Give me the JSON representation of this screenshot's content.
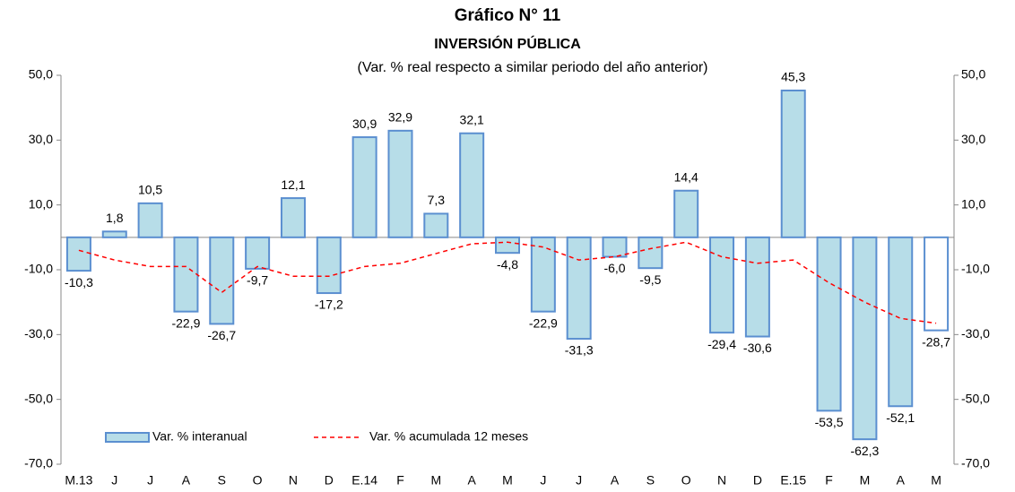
{
  "chart_data": {
    "type": "bar_line",
    "title": "Gráfico N° 11",
    "subtitle": "INVERSIÓN PÚBLICA",
    "note": "(Var. % real respecto a similar periodo del año anterior)",
    "categories": [
      "M.13",
      "J",
      "J",
      "A",
      "S",
      "O",
      "N",
      "D",
      "E.14",
      "F",
      "M",
      "A",
      "M",
      "J",
      "J",
      "A",
      "S",
      "O",
      "N",
      "D",
      "E.15",
      "F",
      "M",
      "A",
      "M"
    ],
    "series": [
      {
        "name": "Var. % interanual",
        "type": "bar",
        "color": "#b7dde8",
        "edge_color": "#5b8fd0",
        "point_colors": [
          "#b7dde8",
          "#b7dde8",
          "#b7dde8",
          "#b7dde8",
          "#b7dde8",
          "#b7dde8",
          "#b7dde8",
          "#b7dde8",
          "#b7dde8",
          "#b7dde8",
          "#b7dde8",
          "#b7dde8",
          "#b7dde8",
          "#b7dde8",
          "#b7dde8",
          "#b7dde8",
          "#b7dde8",
          "#b7dde8",
          "#b7dde8",
          "#b7dde8",
          "#b7dde8",
          "#b7dde8",
          "#b7dde8",
          "#b7dde8",
          "#ffffff"
        ],
        "values": [
          -10.3,
          1.8,
          10.5,
          -22.9,
          -26.7,
          -9.7,
          12.1,
          -17.2,
          30.9,
          32.9,
          7.3,
          32.1,
          -4.8,
          -22.9,
          -31.3,
          -6.0,
          -9.5,
          14.4,
          -29.4,
          -30.6,
          45.3,
          -53.5,
          -62.3,
          -52.1,
          -28.7
        ],
        "value_labels": [
          "-10,3",
          "1,8",
          "10,5",
          "-22,9",
          "-26,7",
          "-9,7",
          "12,1",
          "-17,2",
          "30,9",
          "32,9",
          "7,3",
          "32,1",
          "-4,8",
          "-22,9",
          "-31,3",
          "-6,0",
          "-9,5",
          "14,4",
          "-29,4",
          "-30,6",
          "45,3",
          "-53,5",
          "-62,3",
          "-52,1",
          "-28,7"
        ]
      },
      {
        "name": "Var. % acumulada 12 meses",
        "type": "line",
        "color": "#ff0000",
        "dash": true,
        "values": [
          -4,
          -7,
          -9,
          -9,
          -17,
          -9,
          -12,
          -12,
          -9,
          -8,
          -5,
          -2,
          -1.5,
          -3,
          -7,
          -6,
          -3.5,
          -1.5,
          -6,
          -8,
          -7,
          -14,
          -20,
          -25,
          -26.5
        ]
      }
    ],
    "ylim": [
      -70,
      50
    ],
    "yticks": [
      {
        "value": 50,
        "label": "50,0"
      },
      {
        "value": 30,
        "label": "30,0"
      },
      {
        "value": 10,
        "label": "10,0"
      },
      {
        "value": -10,
        "label": "-10,0"
      },
      {
        "value": -30,
        "label": "-30,0"
      },
      {
        "value": -50,
        "label": "-50,0"
      },
      {
        "value": -70,
        "label": "-70,0"
      }
    ],
    "y2lim": [
      -70,
      50
    ],
    "y2ticks": [
      {
        "value": 50,
        "label": "50,0"
      },
      {
        "value": 30,
        "label": "30,0"
      },
      {
        "value": 10,
        "label": "10,0"
      },
      {
        "value": -10,
        "label": "-10,0"
      },
      {
        "value": -30,
        "label": "-30,0"
      },
      {
        "value": -50,
        "label": "-50,0"
      },
      {
        "value": -70,
        "label": "-70,0"
      }
    ],
    "grid": false
  }
}
